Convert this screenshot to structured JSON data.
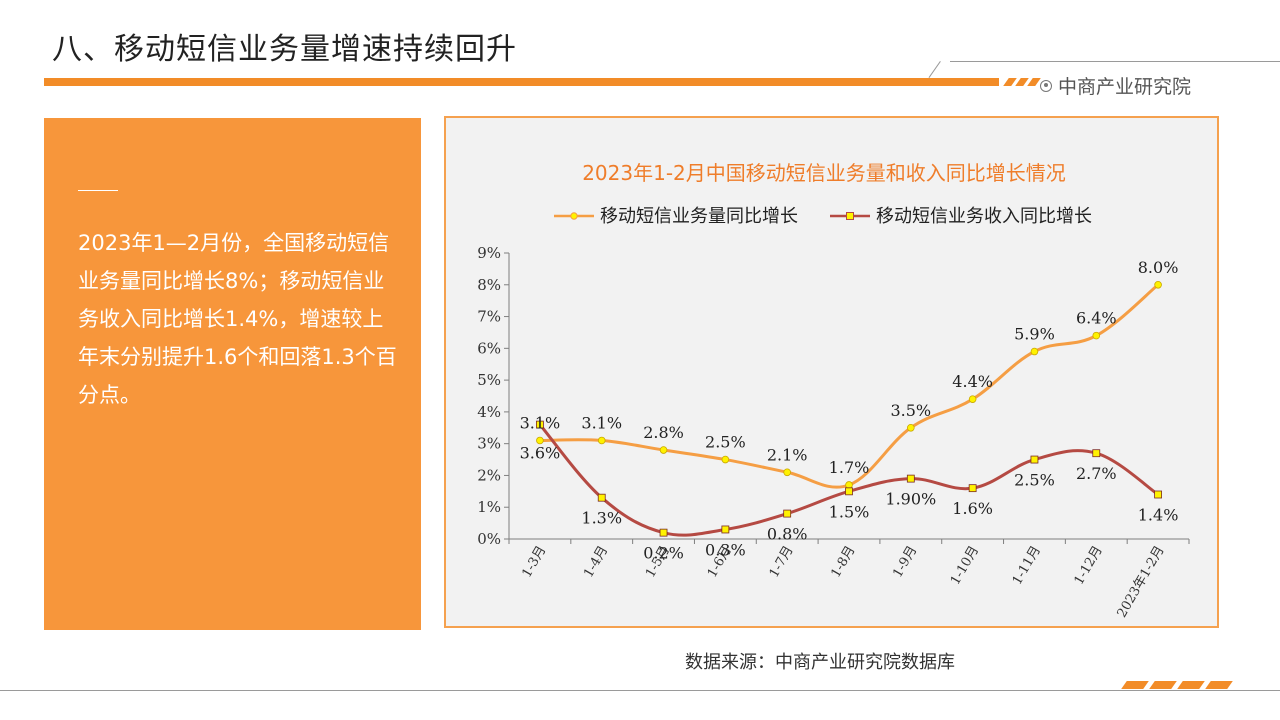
{
  "slide": {
    "title": "八、移动短信业务量增速持续回升",
    "brand": "中商产业研究院",
    "body_text": "2023年1—2月份，全国移动短信业务量同比增长8%；移动短信业务收入同比增长1.4%，增速较上年末分别提升1.6个和回落1.3个百分点。",
    "source": "数据来源：中商产业研究院数据库"
  },
  "colors": {
    "accent": "#F28C28",
    "panel": "#F7963B",
    "series_volume": "#F59E44",
    "series_revenue": "#B54A43",
    "marker_fill": "#FFF200",
    "chart_bg": "#F2F2F2"
  },
  "chart_data": {
    "type": "line",
    "title": "2023年1-2月中国移动短信业务量和收入同比增长情况",
    "categories": [
      "1-3月",
      "1-4月",
      "1-5月",
      "1-6月",
      "1-7月",
      "1-8月",
      "1-9月",
      "1-10月",
      "1-11月",
      "1-12月",
      "2023年1-2月"
    ],
    "series": [
      {
        "name": "移动短信业务量同比增长",
        "values": [
          3.1,
          3.1,
          2.8,
          2.5,
          2.1,
          1.7,
          3.5,
          4.4,
          5.9,
          6.4,
          8.0
        ],
        "labels": [
          "3.1%",
          "3.1%",
          "2.8%",
          "2.5%",
          "2.1%",
          "1.7%",
          "3.5%",
          "4.4%",
          "5.9%",
          "6.4%",
          "8.0%"
        ]
      },
      {
        "name": "移动短信业务收入同比增长",
        "values": [
          3.6,
          1.3,
          0.2,
          0.3,
          0.8,
          1.5,
          1.9,
          1.6,
          2.5,
          2.7,
          1.4
        ],
        "labels": [
          "3.6%",
          "1.3%",
          "0.2%",
          "0.3%",
          "0.8%",
          "1.5%",
          "1.90%",
          "1.6%",
          "2.5%",
          "2.7%",
          "1.4%"
        ]
      }
    ],
    "yticks": [
      "0%",
      "1%",
      "2%",
      "3%",
      "4%",
      "5%",
      "6%",
      "7%",
      "8%",
      "9%"
    ],
    "ylim": [
      0,
      9
    ],
    "legend": "top",
    "grid": false
  }
}
